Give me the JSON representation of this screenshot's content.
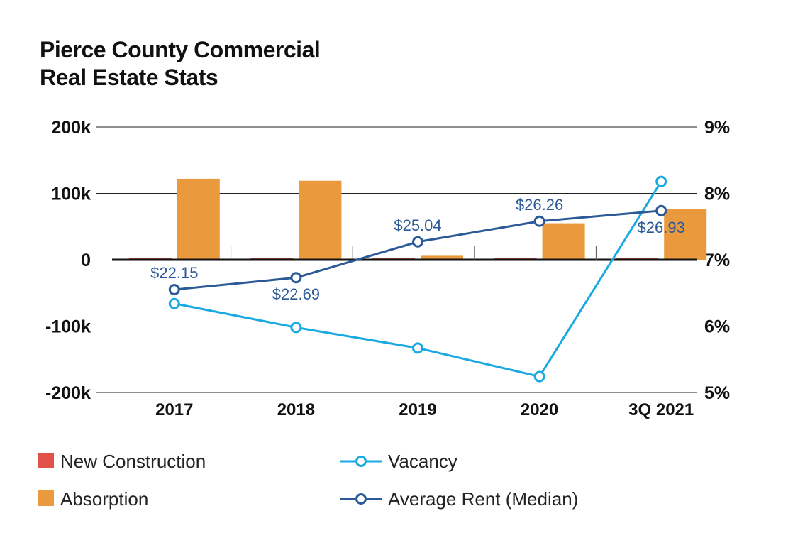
{
  "chart_data": {
    "type": "bar",
    "title_lines": [
      "Pierce County Commercial",
      "Real Estate Stats"
    ],
    "categories": [
      "2017",
      "2018",
      "2019",
      "2020",
      "3Q 2021"
    ],
    "left_axis": {
      "ticks": [
        "200k",
        "100k",
        "0",
        "-100k",
        "-200k"
      ],
      "ylim": [
        -200000,
        200000
      ],
      "tick_values": [
        200000,
        100000,
        0,
        -100000,
        -200000
      ]
    },
    "right_axis": {
      "ticks": [
        "9%",
        "8%",
        "7%",
        "6%",
        "5%"
      ],
      "ylim": [
        5,
        9
      ],
      "tick_values": [
        9,
        8,
        7,
        6,
        5
      ]
    },
    "series": [
      {
        "name": "New Construction",
        "kind": "bar",
        "axis": "left",
        "color": "#e0524a",
        "values": [
          0,
          0,
          0,
          0,
          0
        ]
      },
      {
        "name": "Absorption",
        "kind": "bar",
        "axis": "left",
        "color": "#ea9a3d",
        "values": [
          122000,
          119000,
          6000,
          55000,
          76000
        ]
      },
      {
        "name": "Vacancy",
        "kind": "line",
        "axis": "right",
        "color": "#1aa9e0",
        "unit": "%",
        "values": [
          6.34,
          5.98,
          5.67,
          5.24,
          8.18
        ]
      },
      {
        "name": "Average Rent (Median)",
        "kind": "line",
        "axis": "right",
        "color": "#2b5a96",
        "values": [
          6.55,
          6.73,
          7.27,
          7.58,
          7.74
        ],
        "labels": [
          "$22.15",
          "$22.69",
          "$25.04",
          "$26.26",
          "$26.93"
        ],
        "label_positions": [
          "above",
          "below",
          "above",
          "above",
          "below"
        ]
      }
    ],
    "legend": {
      "placement": "bottom",
      "items": [
        {
          "name": "New Construction",
          "marker": "square",
          "color": "#e0524a"
        },
        {
          "name": "Vacancy",
          "marker": "line-circle",
          "color": "#1aa9e0"
        },
        {
          "name": "Absorption",
          "marker": "square",
          "color": "#ea9a3d"
        },
        {
          "name": "Average Rent (Median)",
          "marker": "line-circle",
          "color": "#2b5a96"
        }
      ]
    }
  }
}
